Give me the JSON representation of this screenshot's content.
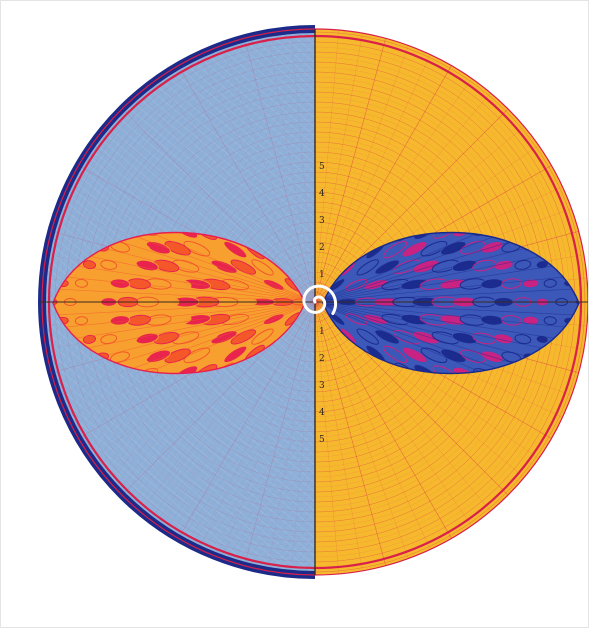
{
  "artwork": {
    "colors": {
      "left_background": "#8fb0d8",
      "right_background": "#f6b92e",
      "outer_ring": "#1c2a8a",
      "red_circle": "#d8204a",
      "axis_line": "#3a2a20",
      "left_petal_fill": "#f4552a",
      "left_petal_accent": "#e81e50",
      "left_petal_light": "#f7a030",
      "right_petal_fill": "#3c58b8",
      "right_petal_dark": "#1a2a8c",
      "right_petal_accent": "#d02080",
      "spiral": "#ffffff"
    },
    "upper_scale_labels": [
      "5",
      "4",
      "3",
      "2",
      "1"
    ],
    "lower_scale_labels": [
      "1",
      "2",
      "3",
      "4",
      "5"
    ]
  }
}
